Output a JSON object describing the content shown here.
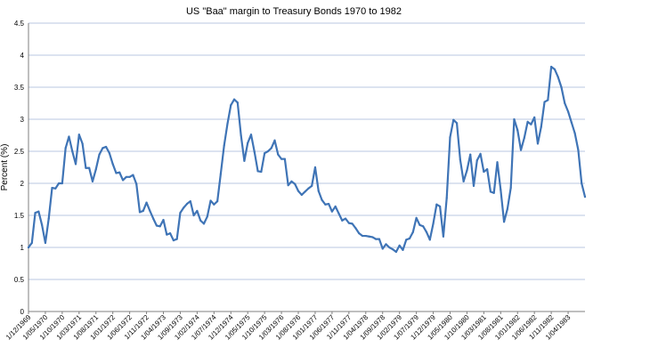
{
  "chart_data": {
    "type": "line",
    "title": "US \"Baa\" margin to Treasury Bonds 1970 to 1982",
    "xlabel": "",
    "ylabel": "Percent (%)",
    "ylim": [
      0,
      4.5
    ],
    "yticks": [
      "0",
      "0.5",
      "1",
      "1.5",
      "2",
      "2.5",
      "3",
      "3.5",
      "4",
      "4.5"
    ],
    "grid": true,
    "legend": "none",
    "line_color": "#3f74b6",
    "x_tick_labels": [
      "1/12/1969",
      "1/05/1970",
      "1/10/1970",
      "1/03/1971",
      "1/08/1971",
      "1/01/1972",
      "1/06/1972",
      "1/11/1972",
      "1/04/1973",
      "1/09/1973",
      "1/02/1974",
      "1/07/1974",
      "1/12/1974",
      "1/05/1975",
      "1/10/1975",
      "1/03/1976",
      "1/08/1976",
      "1/01/1977",
      "1/06/1977",
      "1/11/1977",
      "1/04/1978",
      "1/09/1978",
      "1/02/1979",
      "1/07/1979",
      "1/12/1979",
      "1/05/1980",
      "1/10/1980",
      "1/03/1981",
      "1/08/1981",
      "1/01/1982",
      "1/06/1982",
      "1/11/1982",
      "1/04/1983"
    ],
    "series": [
      {
        "values": [
          1.0,
          1.07,
          1.54,
          1.56,
          1.35,
          1.07,
          1.45,
          1.93,
          1.92,
          2.0,
          2.0,
          2.55,
          2.73,
          2.5,
          2.3,
          2.76,
          2.62,
          2.24,
          2.24,
          2.03,
          2.22,
          2.45,
          2.55,
          2.57,
          2.47,
          2.3,
          2.16,
          2.17,
          2.05,
          2.1,
          2.1,
          2.13,
          1.99,
          1.55,
          1.57,
          1.7,
          1.57,
          1.45,
          1.34,
          1.33,
          1.43,
          1.2,
          1.22,
          1.11,
          1.13,
          1.54,
          1.62,
          1.68,
          1.72,
          1.5,
          1.57,
          1.42,
          1.37,
          1.48,
          1.73,
          1.67,
          1.72,
          2.15,
          2.59,
          2.93,
          3.22,
          3.31,
          3.26,
          2.75,
          2.35,
          2.63,
          2.76,
          2.49,
          2.19,
          2.18,
          2.47,
          2.5,
          2.55,
          2.67,
          2.45,
          2.38,
          2.38,
          1.97,
          2.03,
          1.99,
          1.88,
          1.82,
          1.87,
          1.92,
          1.96,
          2.25,
          1.88,
          1.74,
          1.67,
          1.68,
          1.56,
          1.64,
          1.53,
          1.42,
          1.45,
          1.38,
          1.37,
          1.3,
          1.22,
          1.18,
          1.18,
          1.17,
          1.16,
          1.13,
          1.13,
          0.98,
          1.05,
          1.0,
          0.97,
          0.93,
          1.03,
          0.96,
          1.12,
          1.14,
          1.24,
          1.46,
          1.35,
          1.33,
          1.24,
          1.12,
          1.37,
          1.67,
          1.64,
          1.17,
          1.77,
          2.72,
          2.99,
          2.94,
          2.37,
          2.03,
          2.2,
          2.45,
          1.96,
          2.36,
          2.46,
          2.18,
          2.22,
          1.87,
          1.85,
          2.33,
          1.9,
          1.4,
          1.6,
          1.93,
          3.0,
          2.83,
          2.52,
          2.71,
          2.96,
          2.92,
          3.03,
          2.62,
          2.88,
          3.27,
          3.3,
          3.82,
          3.78,
          3.66,
          3.5,
          3.25,
          3.12,
          2.95,
          2.78,
          2.52,
          2.0,
          1.79
        ]
      }
    ]
  }
}
